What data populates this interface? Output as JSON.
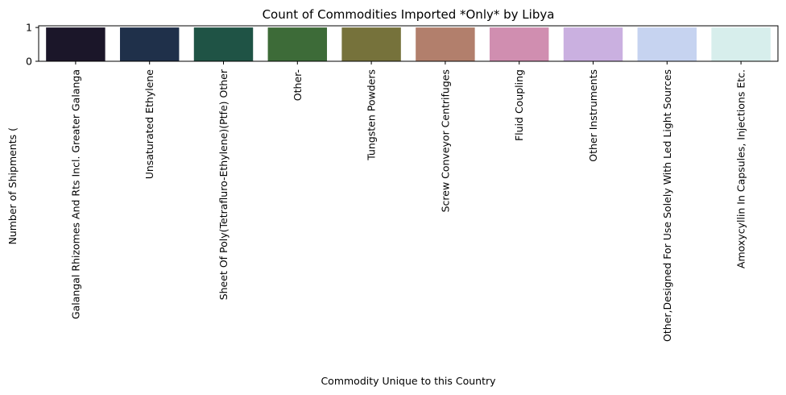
{
  "chart_data": {
    "type": "bar",
    "title": "Count of Commodities Imported *Only* by Libya",
    "xlabel": "Commodity Unique to this Country",
    "ylabel": "Number of Shipments (",
    "ylim": [
      0,
      1.05
    ],
    "yticks": [
      0,
      1
    ],
    "grid": false,
    "legend": "none",
    "categories": [
      "Galangal Rhizomes And Rts Incl. Greater Galanga",
      "Unsaturated Ethylene",
      "Sheet Of Poly(Tetrafluro-Ethylene)(Ptfe) Other",
      "Other-",
      "Tungsten Powders",
      "Screw Conveyor Centrifuges",
      "Fluid Coupling",
      "Other Instruments",
      "Other,Designed For Use Solely With Led Light Sources",
      "Amoxycyllin In Capsules, Injections Etc."
    ],
    "values": [
      1,
      1,
      1,
      1,
      1,
      1,
      1,
      1,
      1,
      1
    ],
    "colors": [
      "#1b1629",
      "#1f304a",
      "#1f5345",
      "#3d6b38",
      "#76723b",
      "#b27f6c",
      "#d08eb0",
      "#cab0e0",
      "#c6d3f0",
      "#d7eeec"
    ]
  }
}
